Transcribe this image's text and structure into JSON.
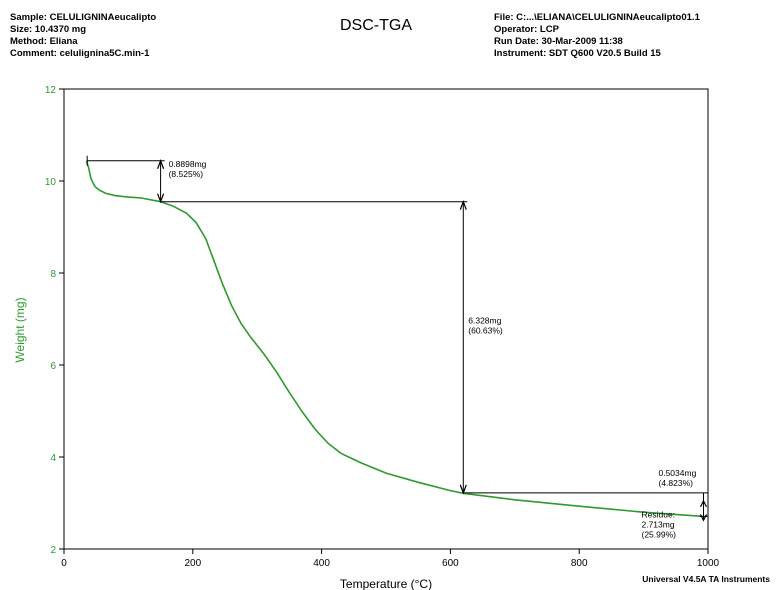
{
  "header_left": [
    "Sample: CELULIGNINAeucalipto",
    "Size:  10.4370 mg",
    "Method: Eliana",
    "Comment: celulignina5C.min-1"
  ],
  "header_right": [
    "File: C:...\\ELIANA\\CELULIGNINAeucalipto01.1",
    "Operator: LCP",
    "Run Date: 30-Mar-2009 11:38",
    "Instrument: SDT Q600 V20.5 Build 15"
  ],
  "footer": "Universal V4.5A TA Instruments",
  "colors": {
    "curve": "#2e9a2e",
    "axis_label": "#2e9a2e",
    "frame": "#000000"
  },
  "chart_data": {
    "type": "line",
    "title": "DSC-TGA",
    "xlabel": "Temperature (°C)",
    "ylabel": "Weight (mg)",
    "xlim": [
      0,
      1000
    ],
    "ylim": [
      2,
      12
    ],
    "xticks": [
      0,
      200,
      400,
      600,
      800,
      1000
    ],
    "yticks": [
      2,
      4,
      6,
      8,
      10,
      12
    ],
    "grid": false,
    "series": [
      {
        "x": [
          35,
          38,
          42,
          48,
          55,
          65,
          80,
          100,
          120,
          150,
          170,
          190,
          205,
          220,
          232,
          245,
          260,
          275,
          290,
          310,
          330,
          350,
          370,
          390,
          410,
          430,
          460,
          500,
          550,
          600,
          620,
          700,
          800,
          900,
          990
        ],
        "y": [
          10.44,
          10.3,
          10.05,
          9.88,
          9.8,
          9.73,
          9.68,
          9.65,
          9.63,
          9.55,
          9.45,
          9.3,
          9.1,
          8.75,
          8.3,
          7.8,
          7.3,
          6.9,
          6.6,
          6.25,
          5.85,
          5.4,
          4.98,
          4.6,
          4.3,
          4.08,
          3.88,
          3.65,
          3.45,
          3.27,
          3.21,
          3.07,
          2.93,
          2.8,
          2.71
        ]
      }
    ],
    "annotations": [
      {
        "id": "step1",
        "lines": [
          "0.8898mg",
          "(8.525%)"
        ],
        "x": 150,
        "y_top": 10.44,
        "y_bottom": 9.55
      },
      {
        "id": "step2",
        "lines": [
          "6.328mg",
          "(60.63%)"
        ],
        "x": 620,
        "y_top": 9.55,
        "y_bottom": 3.22
      },
      {
        "id": "step3",
        "lines": [
          "0.5034mg",
          "(4.823%)"
        ],
        "x": 993,
        "y_top": 3.22,
        "y_bottom": 2.71
      },
      {
        "id": "residue",
        "lines": [
          "Residue:",
          "2.713mg",
          "(25.99%)"
        ],
        "x": 993,
        "y": 2.71
      }
    ]
  }
}
